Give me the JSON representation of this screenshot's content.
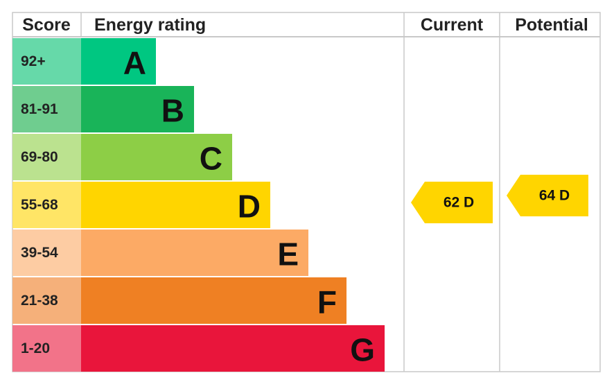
{
  "header": {
    "score": "Score",
    "rating": "Energy rating",
    "current": "Current",
    "potential": "Potential"
  },
  "bands": [
    {
      "score": "92+",
      "letter": "A",
      "color": "#00c781",
      "light": "#66d9a9"
    },
    {
      "score": "81-91",
      "letter": "B",
      "color": "#19b459",
      "light": "#6fcd8f"
    },
    {
      "score": "69-80",
      "letter": "C",
      "color": "#8dce46",
      "light": "#bbe28f"
    },
    {
      "score": "55-68",
      "letter": "D",
      "color": "#ffd500",
      "light": "#ffe566"
    },
    {
      "score": "39-54",
      "letter": "E",
      "color": "#fcaa65",
      "light": "#fdcca3"
    },
    {
      "score": "21-38",
      "letter": "F",
      "color": "#ef8023",
      "light": "#f5b07a"
    },
    {
      "score": "1-20",
      "letter": "G",
      "color": "#e9153b",
      "light": "#f27389"
    }
  ],
  "current": {
    "label": "62 D",
    "band": 3
  },
  "potential": {
    "label": "64 D",
    "band": 3
  }
}
